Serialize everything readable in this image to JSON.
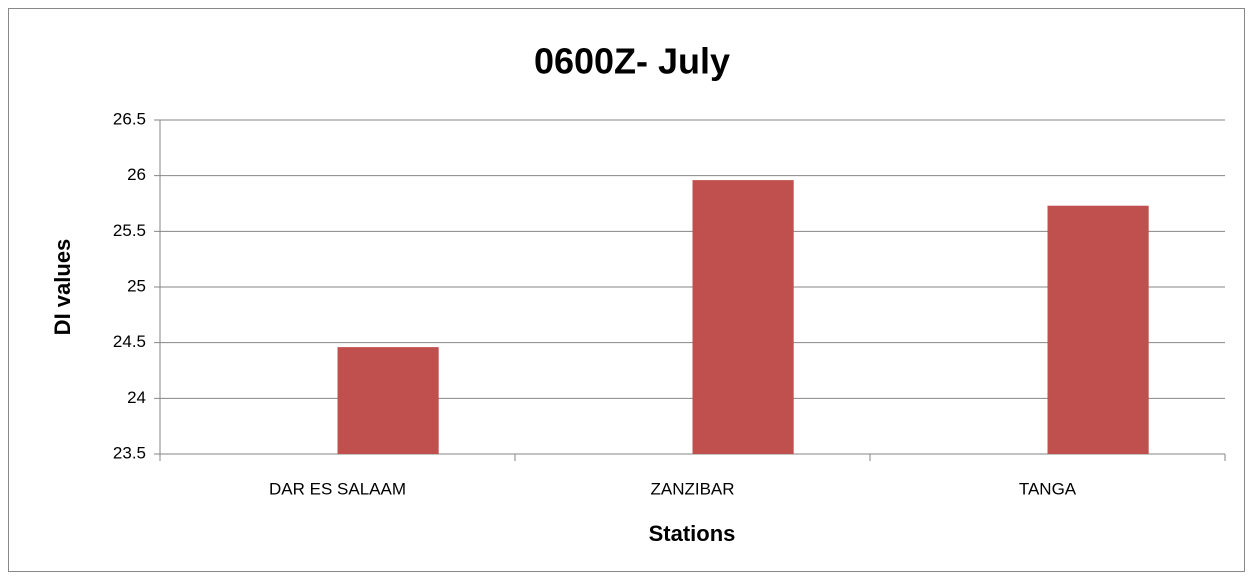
{
  "chart_data": {
    "type": "bar",
    "title": "0600Z- July",
    "x_label": "Stations",
    "y_label": "DI values",
    "categories": [
      "DAR ES SALAAM",
      "ZANZIBAR",
      "TANGA"
    ],
    "values": [
      24.46,
      25.96,
      25.73
    ],
    "color": "#c0504d",
    "ylim": [
      23.5,
      26.5
    ],
    "yticks": [
      23.5,
      24,
      24.5,
      25,
      25.5,
      26,
      26.5
    ],
    "grid": true
  }
}
